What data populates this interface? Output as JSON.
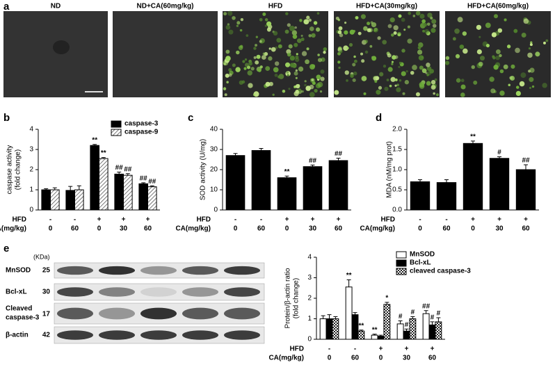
{
  "panel_a": {
    "label": "a",
    "titles": [
      "ND",
      "ND+CA(60mg/kg)",
      "HFD",
      "HFD+CA(30mg/kg)",
      "HFD+CA(60mg/kg)"
    ]
  },
  "panel_e_blot": {
    "label": "e",
    "unit": "(KDa)",
    "rows": [
      {
        "name": [
          "MnSOD"
        ],
        "kda": 25
      },
      {
        "name": [
          "Bcl-xL"
        ],
        "kda": 30
      },
      {
        "name": [
          "Cleaved",
          "caspase-3"
        ],
        "kda": 17
      },
      {
        "name": [
          "β-actin"
        ],
        "kda": 42
      }
    ]
  },
  "chart_data": [
    {
      "type": "bar",
      "panel": "b",
      "ylabel": [
        "caspase activity",
        "(fold change)"
      ],
      "row_labels": [
        "HFD",
        "CA(mg/kg)"
      ],
      "hfd": [
        "-",
        "-",
        "+",
        "+",
        "+"
      ],
      "categories": [
        "0",
        "60",
        "0",
        "30",
        "60"
      ],
      "ylim": [
        0,
        4
      ],
      "yticks": [
        0,
        1,
        2,
        3,
        4
      ],
      "legend": "top-right",
      "series": [
        {
          "name": "caspase-3",
          "color": "#000000",
          "pattern": "solid",
          "values": [
            1.0,
            0.97,
            3.2,
            1.78,
            1.3
          ],
          "errors": [
            0.05,
            0.2,
            0.05,
            0.1,
            0.05
          ],
          "annotations": [
            null,
            null,
            "**",
            "##",
            "##"
          ]
        },
        {
          "name": "caspase-9",
          "color": "#ffffff",
          "pattern": "hatch",
          "values": [
            1.0,
            1.0,
            2.55,
            1.72,
            1.15
          ],
          "errors": [
            0.1,
            0.2,
            0.05,
            0.08,
            0.05
          ],
          "annotations": [
            null,
            null,
            "**",
            "##",
            "##"
          ]
        }
      ]
    },
    {
      "type": "bar",
      "panel": "c",
      "ylabel": [
        "SOD activity (U/mg)"
      ],
      "row_labels": [
        "HFD",
        "CA(mg/kg)"
      ],
      "hfd": [
        "-",
        "-",
        "+",
        "+",
        "+"
      ],
      "categories": [
        "0",
        "60",
        "0",
        "30",
        "60"
      ],
      "ylim": [
        0,
        40
      ],
      "yticks": [
        0,
        10,
        20,
        30,
        40
      ],
      "series": [
        {
          "color": "#000000",
          "pattern": "solid",
          "values": [
            27,
            29.5,
            16,
            21.5,
            24.5
          ],
          "errors": [
            1,
            1,
            0.8,
            0.8,
            1.2
          ],
          "annotations": [
            null,
            null,
            "**",
            "##",
            "##"
          ]
        }
      ]
    },
    {
      "type": "bar",
      "panel": "d",
      "ylabel": [
        "MDA (nM/mg prot)"
      ],
      "row_labels": [
        "HFD",
        "CA(mg/kg)"
      ],
      "hfd": [
        "-",
        "-",
        "+",
        "+",
        "+"
      ],
      "categories": [
        "0",
        "60",
        "0",
        "30",
        "60"
      ],
      "ylim": [
        0,
        2
      ],
      "yticks": [
        {
          "value": 0,
          "label": "0.0"
        },
        {
          "value": 0.5,
          "label": "0.5"
        },
        {
          "value": 1,
          "label": "1.0"
        },
        {
          "value": 1.5,
          "label": "1.5"
        },
        {
          "value": 2,
          "label": "2.0"
        }
      ],
      "series": [
        {
          "color": "#000000",
          "pattern": "solid",
          "values": [
            0.7,
            0.68,
            1.65,
            1.28,
            1.0
          ],
          "errors": [
            0.05,
            0.07,
            0.06,
            0.04,
            0.12
          ],
          "annotations": [
            null,
            null,
            "**",
            "#",
            "##"
          ]
        }
      ]
    },
    {
      "type": "bar",
      "ylabel": [
        "Protein/β-actin ratio",
        "(fold change)"
      ],
      "row_labels": [
        "HFD",
        "CA(mg/kg)"
      ],
      "hfd": [
        "-",
        "-",
        "+",
        "+",
        "+"
      ],
      "categories": [
        "0",
        "60",
        "0",
        "30",
        "60"
      ],
      "ylim": [
        0,
        4
      ],
      "yticks": [
        0,
        1,
        2,
        3,
        4
      ],
      "legend": "top-right",
      "series": [
        {
          "name": "MnSOD",
          "color": "#ffffff",
          "pattern": "solid",
          "values": [
            1.0,
            2.55,
            0.2,
            0.75,
            1.25
          ],
          "errors": [
            0.15,
            0.35,
            0.05,
            0.15,
            0.15
          ],
          "annotations": [
            null,
            "**",
            "**",
            "#",
            "##"
          ]
        },
        {
          "name": "Bcl-xL",
          "color": "#000000",
          "pattern": "solid",
          "values": [
            1.0,
            1.2,
            0.15,
            0.4,
            0.7
          ],
          "errors": [
            0.2,
            0.1,
            0.05,
            0.1,
            0.15
          ],
          "annotations": [
            null,
            null,
            null,
            "#",
            "#"
          ]
        },
        {
          "name": "cleaved caspase-3",
          "color": "#ffffff",
          "pattern": "checker",
          "values": [
            1.0,
            0.4,
            1.7,
            1.0,
            0.85
          ],
          "errors": [
            0.1,
            0.05,
            0.1,
            0.1,
            0.2
          ],
          "annotations": [
            null,
            "**",
            "*",
            "#",
            "#"
          ]
        }
      ]
    }
  ]
}
